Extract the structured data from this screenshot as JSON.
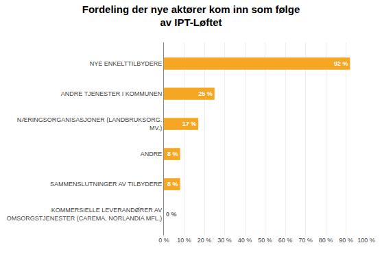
{
  "chart_data": {
    "type": "bar",
    "orientation": "horizontal",
    "title": "Fordeling der nye aktører kom inn som følge\nav IPT-Løftet",
    "categories": [
      "KOMMERSIELLE LEVERANDØRER AV\nOMSORGSTJENESTER (CAREMA, NORLANDIA MFL.)",
      "SAMMENSLUTNINGER AV TILBYDERE",
      "ANDRE",
      "NÆRINGSORGANISASJONER (LANDBRUKSORG.\nMV.)",
      "ANDRE TJENESTER I KOMMUNEN",
      "NYE ENKELTTILBYDERE"
    ],
    "values": [
      0,
      8,
      8,
      17,
      25,
      92
    ],
    "value_labels": [
      "0 %",
      "8 %",
      "8 %",
      "17 %",
      "25 %",
      "92 %"
    ],
    "data_labels": true,
    "color": "#F5A623",
    "xlim": [
      0,
      100
    ],
    "xticks": [
      {
        "value": 0,
        "label": "0 %"
      },
      {
        "value": 10,
        "label": "10 %"
      },
      {
        "value": 20,
        "label": "20 %"
      },
      {
        "value": 30,
        "label": "30 %"
      },
      {
        "value": 40,
        "label": "40 %"
      },
      {
        "value": 50,
        "label": "50 %"
      },
      {
        "value": 60,
        "label": "60 %"
      },
      {
        "value": 70,
        "label": "70 %"
      },
      {
        "value": 80,
        "label": "80 %"
      },
      {
        "value": 90,
        "label": "90 %"
      },
      {
        "value": 100,
        "label": "100 %"
      }
    ],
    "grid": true
  }
}
